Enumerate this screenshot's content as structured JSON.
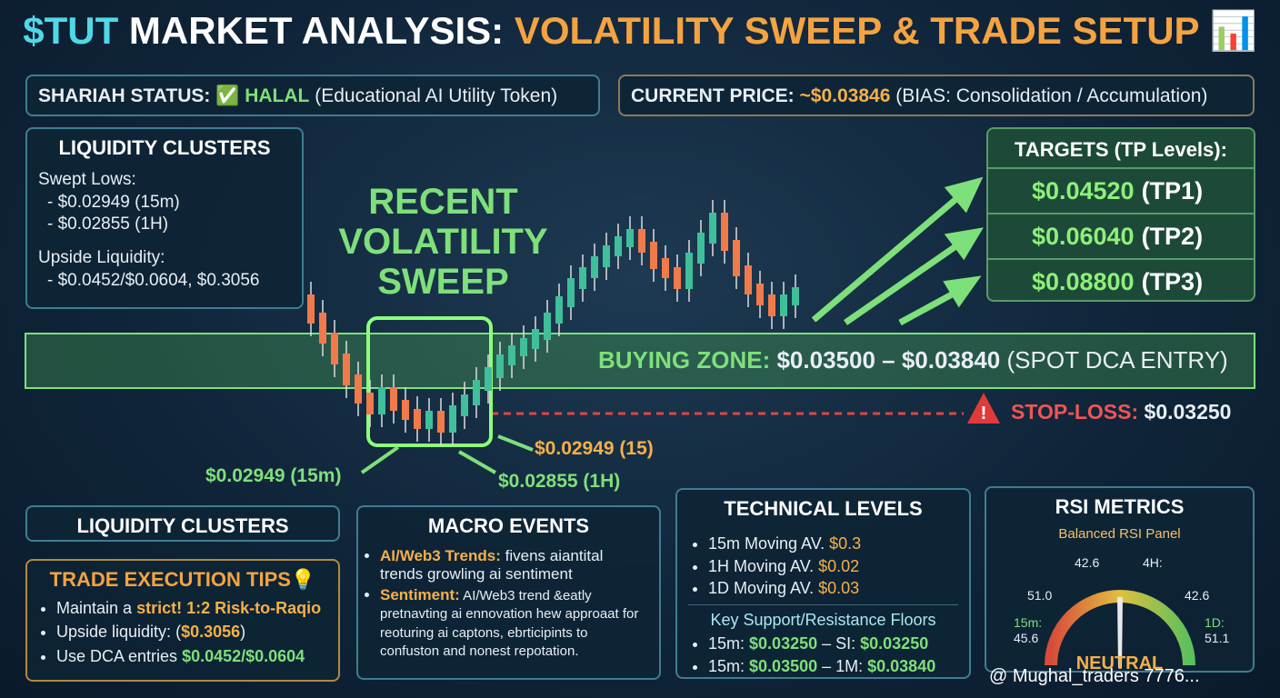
{
  "header": {
    "ticker": "$TUT",
    "title_main": "MARKET ANALYSIS:",
    "title_accent": "VOLATILITY SWEEP & TRADE SETUP",
    "icon": "📊"
  },
  "shariah": {
    "label": "SHARIAH STATUS:",
    "status": "✅ HALAL",
    "note": "(Educational AI Utility Token)"
  },
  "price": {
    "label": "CURRENT PRICE:",
    "value": "~$0.03846",
    "note": "(BIAS: Consolidation / Accumulation)"
  },
  "liquidity_top": {
    "title": "LIQUIDITY CLUSTERS",
    "items": [
      "Swept Lows:",
      "- $0.02949 (15m)",
      "- $0.02855 (1H)",
      "Upside Liquidity:",
      "- $0.0452/$0.0604, $0.3056"
    ]
  },
  "sweep": {
    "lines": [
      "RECENT",
      "VOLATILITY",
      "SWEEP"
    ]
  },
  "targets": {
    "title": "TARGETS (TP Levels):",
    "rows": [
      [
        "$0.04520",
        "(TP1)"
      ],
      [
        "$0.06040",
        "(TP2)"
      ],
      [
        "$0.08800",
        "(TP3)"
      ]
    ]
  },
  "buying_zone": {
    "label": "BUYING ZONE:",
    "range": "$0.03500 – $0.03840",
    "note": "(SPOT DCA ENTRY)"
  },
  "stop_loss": {
    "label": "STOP-LOSS:",
    "value": "$0.03250"
  },
  "annotations": {
    "right": "$0.02949 (15)",
    "left": "$0.02949 (15m)",
    "bottom": "$0.02855 (1H)"
  },
  "liquidity_bottom": {
    "title": "LIQUIDITY CLUSTERS"
  },
  "tips": {
    "title": "TRADE EXECUTION TIPS",
    "icon": "💡",
    "items": [
      [
        "Maintain a ",
        "strict! 1:2 Risk-to-Raqio"
      ],
      [
        "Upside liquidity: (",
        "$0.3056",
        ")"
      ],
      [
        "Use DCA entries ",
        "$0.0452/$0.0604"
      ]
    ]
  },
  "macro": {
    "title": "MACRO EVENTS",
    "items": [
      [
        "AI/Web3 Trends:",
        " fivens aiantital trends growling ai sentiment"
      ],
      [
        "Sentiment:",
        " AI/Web3 trend &eatly pretnavting ai ennovation hew approaat for reoturing ai captons, ebrticipints to confuston and nonest repotation."
      ]
    ]
  },
  "technical": {
    "title": "TECHNICAL LEVELS",
    "items": [
      [
        "15m Moving AV. ",
        "$0.3"
      ],
      [
        "1H Moving AV. ",
        "$0.02"
      ],
      [
        "1D Moving AV. ",
        "$0.03"
      ]
    ],
    "subtitle": "Key Support/Resistance Floors",
    "floors": [
      [
        "15m: ",
        "$0.03250",
        " – ЅI: ",
        "$0.03250"
      ],
      [
        "15m: ",
        "$0.03500",
        " – 1M: ",
        "$0.03840"
      ]
    ]
  },
  "rsi": {
    "title": "RSI METRICS",
    "subtitle": "Balanced RSI Panel",
    "top_left": "42.6",
    "top_right": "4H:",
    "left": "51.0",
    "right": "42.6",
    "low_left_label": "15m:",
    "low_left_value": "45.6",
    "low_right_label": "1D:",
    "low_right_value": "51.1",
    "state": "NEUTRAL"
  },
  "watermark": "@ Mughal_traders 7776..."
}
